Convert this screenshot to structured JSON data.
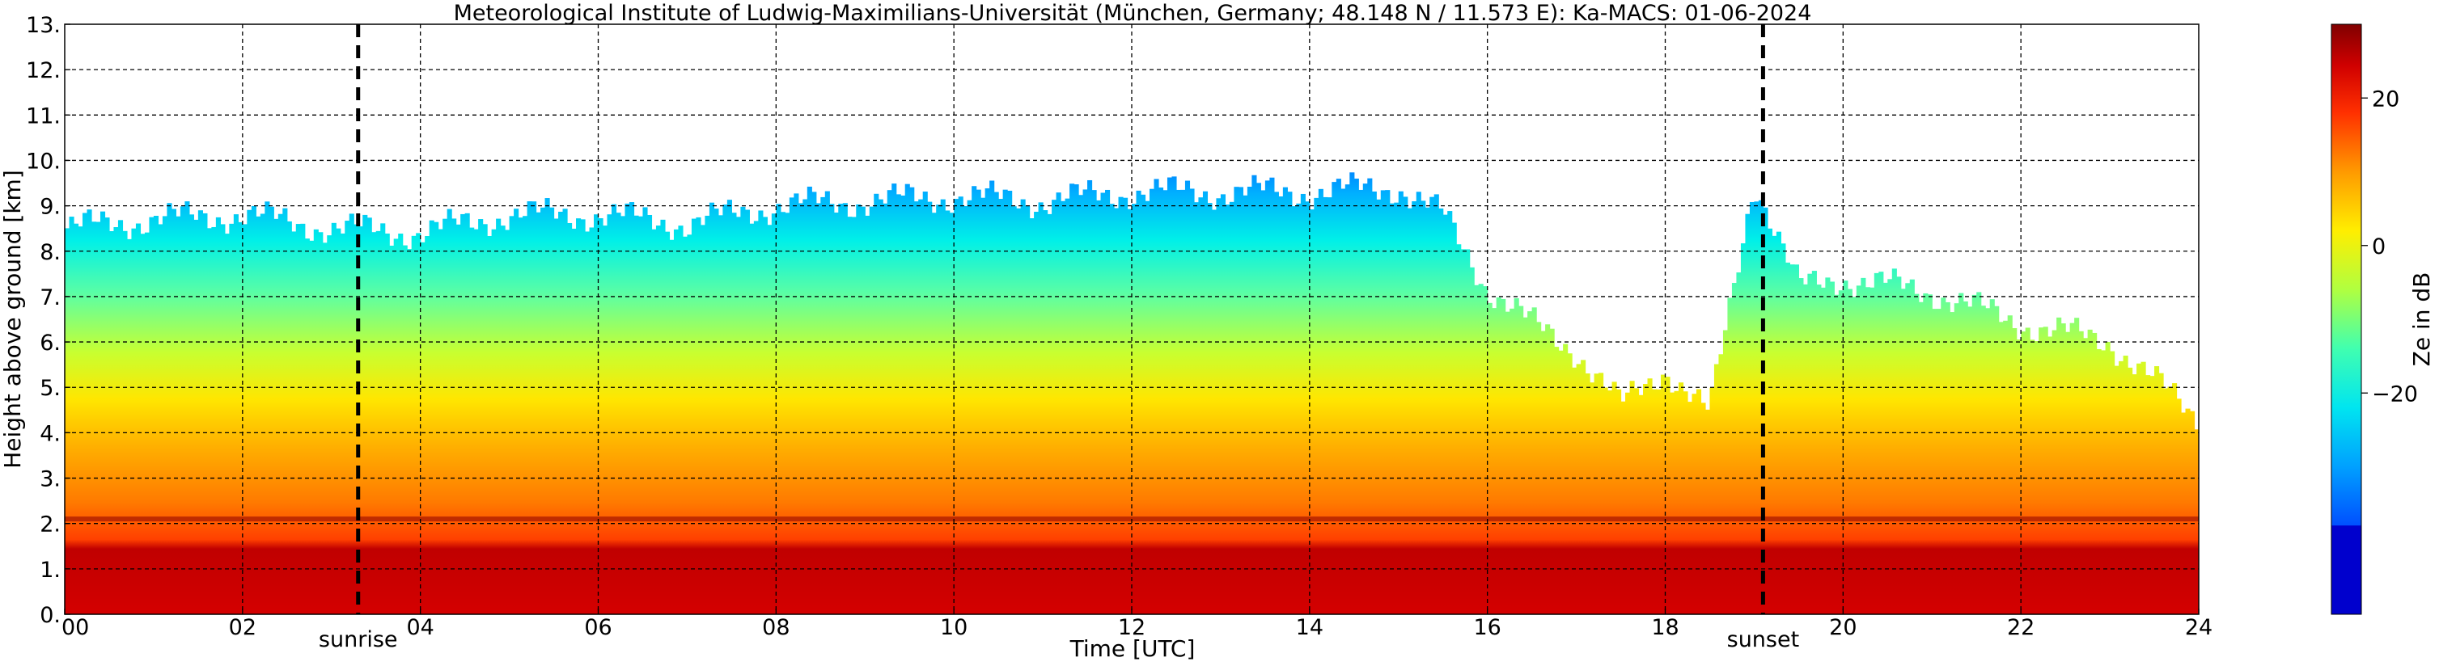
{
  "chart_data": {
    "type": "heatmap",
    "title": "Meteorological Institute of Ludwig-Maximilians-Universität (München, Germany; 48.148 N / 11.573 E):    Ka-MACS: 01-06-2024",
    "xlabel": "Time [UTC]",
    "ylabel": "Height above ground [km]",
    "xlim": [
      0,
      24
    ],
    "ylim": [
      0,
      13
    ],
    "x_ticks": [
      0,
      2,
      4,
      6,
      8,
      10,
      12,
      14,
      16,
      18,
      20,
      22,
      24
    ],
    "x_tick_labels": [
      "00",
      "02",
      "04",
      "06",
      "08",
      "10",
      "12",
      "14",
      "16",
      "18",
      "20",
      "22",
      "24"
    ],
    "y_ticks": [
      0,
      1,
      2,
      3,
      4,
      5,
      6,
      7,
      8,
      9,
      10,
      11,
      12,
      13
    ],
    "y_tick_labels": [
      "0.",
      "1.",
      "2.",
      "3.",
      "4.",
      "5.",
      "6.",
      "7.",
      "8.",
      "9.",
      "10.",
      "11.",
      "12.",
      "13."
    ],
    "grid": true,
    "colorbar": {
      "label": "Ze in dB",
      "range": [
        -50,
        30
      ],
      "ticks": [
        -20,
        0,
        20
      ],
      "tick_labels": [
        "−20",
        "0",
        "20"
      ],
      "colormap": "jet",
      "below_range_color": "#0000cd"
    },
    "markers": [
      {
        "label": "sunrise",
        "time": 3.3
      },
      {
        "label": "sunset",
        "time": 19.1
      }
    ],
    "cloud_top_km": {
      "x": [
        0,
        1,
        2,
        3,
        4,
        5,
        6,
        7,
        8,
        9,
        10,
        11,
        12,
        13,
        14,
        15,
        15.5,
        16,
        16.5,
        17,
        17.5,
        18,
        18.5,
        19,
        19.5,
        20,
        21,
        22,
        23,
        24
      ],
      "values": [
        8.5,
        8.7,
        8.8,
        8.5,
        8.4,
        8.8,
        8.8,
        8.6,
        9.0,
        9.1,
        9.2,
        9.1,
        9.3,
        9.3,
        9.3,
        9.4,
        8.8,
        7.2,
        6.4,
        5.8,
        4.6,
        5.4,
        4.4,
        9.6,
        7.2,
        7.4,
        7.1,
        6.4,
        6.0,
        4.3
      ]
    },
    "bright_band_km": 2.1,
    "reflectivity_dB_by_height": {
      "heights_km": [
        0,
        1,
        2,
        2.2,
        3,
        4,
        5,
        6,
        7,
        8,
        9
      ],
      "values": [
        27,
        28,
        27,
        15,
        13,
        10,
        5,
        -2,
        -10,
        -20,
        -30
      ]
    }
  }
}
